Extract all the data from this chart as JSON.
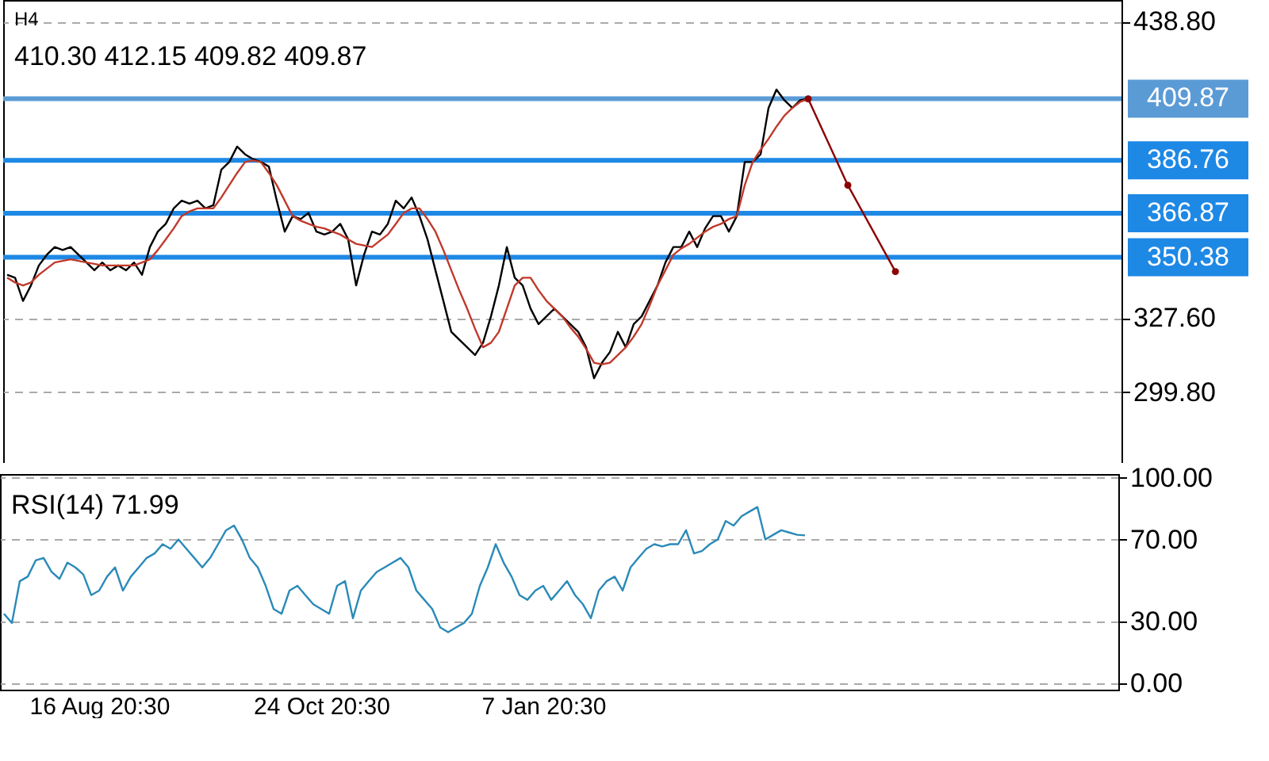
{
  "chart_data": [
    {
      "type": "line",
      "title": "H4",
      "subtitle": "410.30 412.15 409.82 409.87",
      "categories": [
        null,
        null,
        null,
        null,
        null,
        null,
        null,
        null,
        null,
        null,
        null,
        null,
        null,
        null,
        null,
        null,
        null,
        null,
        null,
        null,
        null,
        null,
        null,
        null,
        null,
        null,
        null,
        null,
        null,
        null,
        null,
        null,
        null,
        null,
        null,
        null,
        null,
        null,
        null,
        null,
        null,
        null,
        null,
        null,
        null,
        null,
        null,
        null,
        null,
        null,
        null,
        null,
        null,
        null,
        null,
        null,
        null,
        null,
        null,
        null,
        null,
        null,
        null,
        null,
        null,
        null,
        null,
        null,
        null,
        null,
        null,
        null,
        null,
        null,
        null,
        null,
        null,
        null,
        null,
        null,
        null,
        null,
        null,
        null,
        null,
        null,
        null,
        null,
        null,
        null,
        null,
        null,
        null,
        null,
        null,
        null,
        null,
        null,
        null,
        null,
        null,
        null,
        null,
        null,
        null,
        null,
        null,
        null,
        null,
        null,
        null,
        null,
        null,
        null,
        null,
        null,
        null,
        null,
        null,
        null,
        null,
        null,
        null,
        null,
        null,
        null,
        null,
        null,
        null,
        null,
        null,
        null,
        null,
        null,
        null,
        null,
        null,
        null,
        null,
        null,
        null
      ],
      "ylim": [
        273.2,
        446.9
      ],
      "yticks": [
        {
          "value": 438.8,
          "label": "438.80"
        },
        {
          "value": 327.6,
          "label": "327.60"
        },
        {
          "value": 299.8,
          "label": "299.80"
        }
      ],
      "tick_labels": "y",
      "grid": "y",
      "ref_lines": [
        {
          "axis": "y",
          "value": 409.87,
          "label": "409.87",
          "color": "#5b9bd5"
        },
        {
          "axis": "y",
          "value": 386.76,
          "label": "386.76",
          "color": "#1e88e5"
        },
        {
          "axis": "y",
          "value": 366.87,
          "label": "366.87",
          "color": "#1e88e5"
        },
        {
          "axis": "y",
          "value": 350.38,
          "label": "350.38",
          "color": "#1e88e5"
        }
      ],
      "series": [
        {
          "color": "#000000",
          "values": [
            343.8,
            342.7,
            334.0,
            339.8,
            347.3,
            351.3,
            354.2,
            353.1,
            354.2,
            351.3,
            348.4,
            345.5,
            348.4,
            345.5,
            347.3,
            345.5,
            348.4,
            343.8,
            354.2,
            360.0,
            362.9,
            368.7,
            371.6,
            370.5,
            371.6,
            368.7,
            369.9,
            383.2,
            386.1,
            391.9,
            389.0,
            387.2,
            386.1,
            384.4,
            371.6,
            360.0,
            365.8,
            364.7,
            367.0,
            360.0,
            358.9,
            360.0,
            362.9,
            357.1,
            339.8,
            351.3,
            360.0,
            358.9,
            362.9,
            371.6,
            368.7,
            372.8,
            365.8,
            357.1,
            345.5,
            334.0,
            322.4,
            319.5,
            316.6,
            313.7,
            318.3,
            328.2,
            339.8,
            354.2,
            342.7,
            339.8,
            331.1,
            325.3,
            328.2,
            331.1,
            328.2,
            325.3,
            322.4,
            316.6,
            305.0,
            310.8,
            314.8,
            322.4,
            316.6,
            325.3,
            328.2,
            334.0,
            339.8,
            348.4,
            354.2,
            354.2,
            360.0,
            354.2,
            361.2,
            365.8,
            365.8,
            360.0,
            365.8,
            386.1,
            386.1,
            389.0,
            406.4,
            413.3,
            409.3,
            406.4,
            409.3,
            409.87,
            null,
            null,
            null,
            null,
            null,
            null,
            null,
            null,
            null,
            null,
            null,
            null,
            null,
            null,
            null,
            null,
            null,
            null,
            null,
            null,
            null,
            null,
            null,
            null,
            null,
            null,
            null,
            null,
            null,
            null,
            null,
            null,
            null,
            null,
            null,
            null,
            null,
            null,
            null
          ]
        },
        {
          "color": "#c0392b",
          "values": [
            342.7,
            340.9,
            339.8,
            340.9,
            343.8,
            346.1,
            348.4,
            349.0,
            349.6,
            349.0,
            348.4,
            347.9,
            347.3,
            347.3,
            347.3,
            347.3,
            347.3,
            348.4,
            349.6,
            353.1,
            357.1,
            361.2,
            365.8,
            367.6,
            368.7,
            368.7,
            368.7,
            372.8,
            377.4,
            382.0,
            386.1,
            386.7,
            386.1,
            382.0,
            377.4,
            371.6,
            365.8,
            364.1,
            362.9,
            361.8,
            361.2,
            360.0,
            358.9,
            357.1,
            355.4,
            354.8,
            354.2,
            356.6,
            358.9,
            362.9,
            367.0,
            368.7,
            368.7,
            364.7,
            360.0,
            353.1,
            345.5,
            338.0,
            331.1,
            323.5,
            316.6,
            318.3,
            322.4,
            331.1,
            339.8,
            342.7,
            342.7,
            338.0,
            334.0,
            331.1,
            328.2,
            324.1,
            320.6,
            316.0,
            310.8,
            310.2,
            310.8,
            313.7,
            316.6,
            320.6,
            325.3,
            332.2,
            339.8,
            345.5,
            351.3,
            353.7,
            355.4,
            357.7,
            360.0,
            361.8,
            362.9,
            364.7,
            365.8,
            377.4,
            386.1,
            390.7,
            394.8,
            399.4,
            403.5,
            406.4,
            408.7,
            409.8,
            null,
            null,
            null,
            null,
            null,
            null,
            null,
            null,
            null,
            null,
            null,
            null,
            null,
            null,
            null,
            null,
            null,
            null,
            null,
            null,
            null,
            null,
            null,
            null,
            null,
            null,
            null,
            null,
            null,
            null,
            null,
            null,
            null,
            null,
            null,
            null,
            null,
            null,
            null
          ]
        },
        {
          "color": "#8b0000",
          "marker": "circle",
          "values": [
            null,
            null,
            null,
            null,
            null,
            null,
            null,
            null,
            null,
            null,
            null,
            null,
            null,
            null,
            null,
            null,
            null,
            null,
            null,
            null,
            null,
            null,
            null,
            null,
            null,
            null,
            null,
            null,
            null,
            null,
            null,
            null,
            null,
            null,
            null,
            null,
            null,
            null,
            null,
            null,
            null,
            null,
            null,
            null,
            null,
            null,
            null,
            null,
            null,
            null,
            null,
            null,
            null,
            null,
            null,
            null,
            null,
            null,
            null,
            null,
            null,
            null,
            null,
            null,
            null,
            null,
            null,
            null,
            null,
            null,
            null,
            null,
            null,
            null,
            null,
            null,
            null,
            null,
            null,
            null,
            null,
            null,
            null,
            null,
            null,
            null,
            null,
            null,
            null,
            null,
            null,
            null,
            null,
            null,
            null,
            null,
            null,
            null,
            null,
            null,
            null,
            409.8,
            null,
            null,
            null,
            null,
            377.4,
            null,
            null,
            null,
            null,
            null,
            345.0,
            null,
            null,
            null,
            null,
            null,
            null,
            null,
            null,
            null,
            null,
            null,
            null,
            null,
            null,
            null,
            null,
            null,
            null,
            null,
            null,
            null,
            null,
            null,
            null,
            null,
            null,
            null,
            null
          ]
        }
      ]
    },
    {
      "type": "line",
      "title": "RSI(14) 71.99",
      "categories": [
        null,
        null,
        null,
        null,
        null,
        null,
        null,
        null,
        null,
        null,
        null,
        null,
        "16 Aug 20:30",
        null,
        null,
        null,
        null,
        null,
        null,
        null,
        null,
        null,
        null,
        null,
        null,
        null,
        null,
        null,
        null,
        null,
        null,
        null,
        null,
        null,
        null,
        null,
        null,
        null,
        null,
        null,
        "24 Oct 20:30",
        null,
        null,
        null,
        null,
        null,
        null,
        null,
        null,
        null,
        null,
        null,
        null,
        null,
        null,
        null,
        null,
        null,
        null,
        null,
        null,
        null,
        null,
        null,
        null,
        null,
        null,
        null,
        "7 Jan 20:30",
        null,
        null,
        null,
        null,
        null,
        null,
        null,
        null,
        null,
        null,
        null,
        null,
        null,
        null,
        null,
        null,
        null,
        null,
        null,
        null,
        null,
        null,
        null,
        null,
        null,
        null,
        null,
        null,
        null,
        null,
        null,
        null,
        null,
        null,
        null,
        null,
        null,
        null,
        null,
        null,
        null,
        null,
        null,
        null,
        null,
        null,
        null,
        null,
        null,
        null,
        null,
        null,
        null,
        null,
        null,
        null,
        null,
        null,
        null,
        null,
        null,
        null,
        null,
        null,
        null,
        null,
        null,
        null,
        null,
        null,
        null,
        null
      ],
      "ylim": [
        -3.2,
        101.9
      ],
      "yticks": [
        {
          "value": 100,
          "label": "100.00"
        },
        {
          "value": 70,
          "label": "70.00"
        },
        {
          "value": 30,
          "label": "30.00"
        },
        {
          "value": 0,
          "label": "0.00"
        }
      ],
      "grid": "y",
      "series": [
        {
          "color": "#2a8ab8",
          "values": [
            33.8,
            29.3,
            49.7,
            51.9,
            59.8,
            61,
            54.2,
            50.8,
            58.7,
            56.4,
            53,
            42.9,
            45.1,
            51.9,
            56.4,
            45.1,
            51.9,
            56.4,
            61,
            63.2,
            67.7,
            65.5,
            70,
            65.5,
            61,
            56.4,
            61,
            67.7,
            74.5,
            76.8,
            70,
            61,
            56.4,
            47.4,
            36.1,
            33.8,
            45.1,
            47.4,
            42.9,
            38.4,
            36.1,
            33.8,
            47.4,
            49.7,
            31.6,
            45.1,
            49.7,
            54.2,
            56.4,
            58.7,
            61,
            56.4,
            45.1,
            40.6,
            36.1,
            27.1,
            24.8,
            27.1,
            29.3,
            33.8,
            47.4,
            56.4,
            67.7,
            58.7,
            51.9,
            42.9,
            40.6,
            45.1,
            47.4,
            40.6,
            45.1,
            49.7,
            42.9,
            38.4,
            31.6,
            45.1,
            49.7,
            51.9,
            45.1,
            56.4,
            61,
            65.5,
            67.7,
            66.6,
            67.7,
            67.7,
            74.5,
            63.2,
            64.4,
            67.7,
            70,
            79,
            76.8,
            81.3,
            83.6,
            85.8,
            70,
            72.3,
            74.5,
            73.4,
            72.3,
            71.99,
            null,
            null,
            null,
            null,
            null,
            null,
            null,
            null,
            null,
            null,
            null,
            null,
            null,
            null,
            null,
            null,
            null,
            null,
            null,
            null,
            null,
            null,
            null,
            null,
            null,
            null,
            null,
            null,
            null,
            null,
            null,
            null,
            null,
            null,
            null,
            null,
            null,
            null,
            null
          ]
        }
      ]
    }
  ]
}
